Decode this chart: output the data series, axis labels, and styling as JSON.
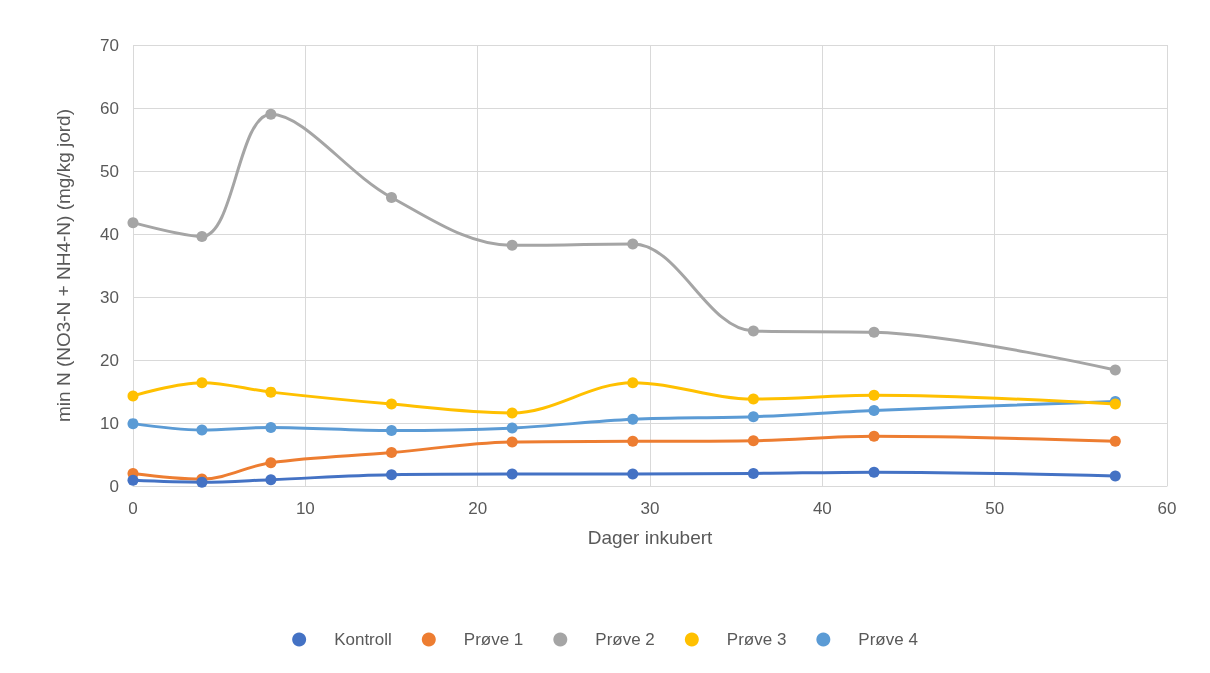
{
  "chart_data": {
    "type": "line",
    "xlabel": "Dager inkubert",
    "ylabel": "min N (NO3-N + NH4-N) (mg/kg jord)",
    "x": [
      0,
      4,
      8,
      15,
      22,
      29,
      36,
      43,
      57
    ],
    "xlim": [
      0,
      60
    ],
    "xticks": [
      0,
      10,
      20,
      30,
      40,
      50,
      60
    ],
    "ylim": [
      0,
      70
    ],
    "yticks": [
      0,
      10,
      20,
      30,
      40,
      50,
      60,
      70
    ],
    "grid": true,
    "legend": "bottom",
    "marker": "circle",
    "line_style": "solid",
    "series": [
      {
        "name": "Kontroll",
        "color": "#4472c4",
        "values": [
          0.9,
          0.6,
          1.0,
          1.8,
          1.9,
          1.9,
          2.0,
          2.2,
          1.6
        ]
      },
      {
        "name": "Prøve 1",
        "color": "#ed7d31",
        "values": [
          2.0,
          1.1,
          3.7,
          5.3,
          7.0,
          7.1,
          7.2,
          7.9,
          7.1
        ]
      },
      {
        "name": "Prøve 2",
        "color": "#a5a5a5",
        "values": [
          41.8,
          39.6,
          59.0,
          45.8,
          38.2,
          38.4,
          24.6,
          24.4,
          18.4
        ]
      },
      {
        "name": "Prøve 3",
        "color": "#ffc000",
        "values": [
          14.3,
          16.4,
          14.9,
          13.0,
          11.6,
          16.4,
          13.8,
          14.4,
          13.0
        ]
      },
      {
        "name": "Prøve 4",
        "color": "#5b9bd5",
        "values": [
          9.9,
          8.9,
          9.3,
          8.8,
          9.2,
          10.6,
          11.0,
          12.0,
          13.4
        ]
      }
    ]
  }
}
